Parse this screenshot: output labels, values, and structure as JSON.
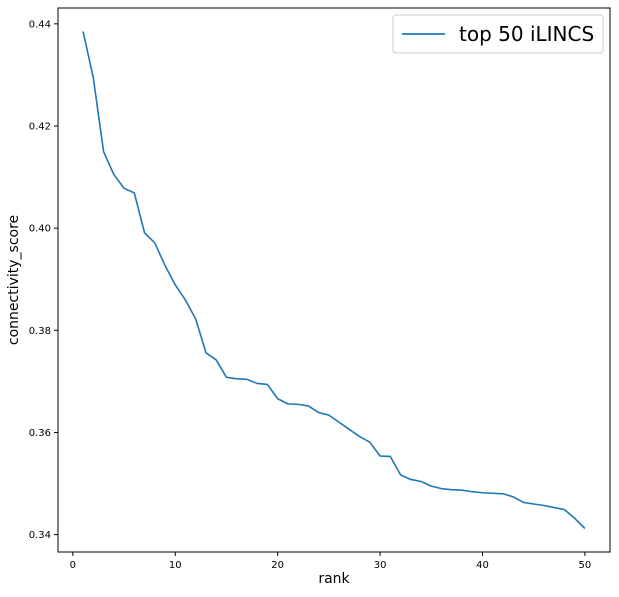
{
  "chart_data": {
    "type": "line",
    "title": "",
    "xlabel": "rank",
    "ylabel": "connectivity_score",
    "xlim": [
      -1.45,
      52.45
    ],
    "ylim": [
      0.3366,
      0.4431
    ],
    "xticks": [
      0,
      10,
      20,
      30,
      40,
      50
    ],
    "yticks": [
      0.34,
      0.36,
      0.38,
      0.4,
      0.42,
      0.44
    ],
    "ytick_labels": [
      "0.34",
      "0.36",
      "0.38",
      "0.40",
      "0.42",
      "0.44"
    ],
    "grid": false,
    "legend_position": "top-right",
    "series": [
      {
        "name": "top 50 iLINCS",
        "color": "#1f77b4",
        "x": [
          1,
          2,
          3,
          4,
          5,
          6,
          7,
          8,
          9,
          10,
          11,
          12,
          13,
          14,
          15,
          16,
          17,
          18,
          19,
          20,
          21,
          22,
          23,
          24,
          25,
          26,
          27,
          28,
          29,
          30,
          31,
          32,
          33,
          34,
          35,
          36,
          37,
          38,
          39,
          40,
          41,
          42,
          43,
          44,
          45,
          46,
          47,
          48,
          49,
          50
        ],
        "y": [
          0.4385,
          0.4294,
          0.415,
          0.4105,
          0.4078,
          0.4069,
          0.3991,
          0.3971,
          0.3927,
          0.3889,
          0.3859,
          0.3822,
          0.3756,
          0.3742,
          0.3708,
          0.3705,
          0.3704,
          0.3696,
          0.3694,
          0.3666,
          0.3656,
          0.3655,
          0.3652,
          0.3639,
          0.3634,
          0.362,
          0.3606,
          0.3592,
          0.3581,
          0.3554,
          0.3553,
          0.3517,
          0.3508,
          0.3504,
          0.3495,
          0.349,
          0.3488,
          0.3487,
          0.3484,
          0.3482,
          0.3481,
          0.348,
          0.3474,
          0.3463,
          0.346,
          0.3457,
          0.3453,
          0.3449,
          0.3432,
          0.3412
        ]
      }
    ]
  }
}
